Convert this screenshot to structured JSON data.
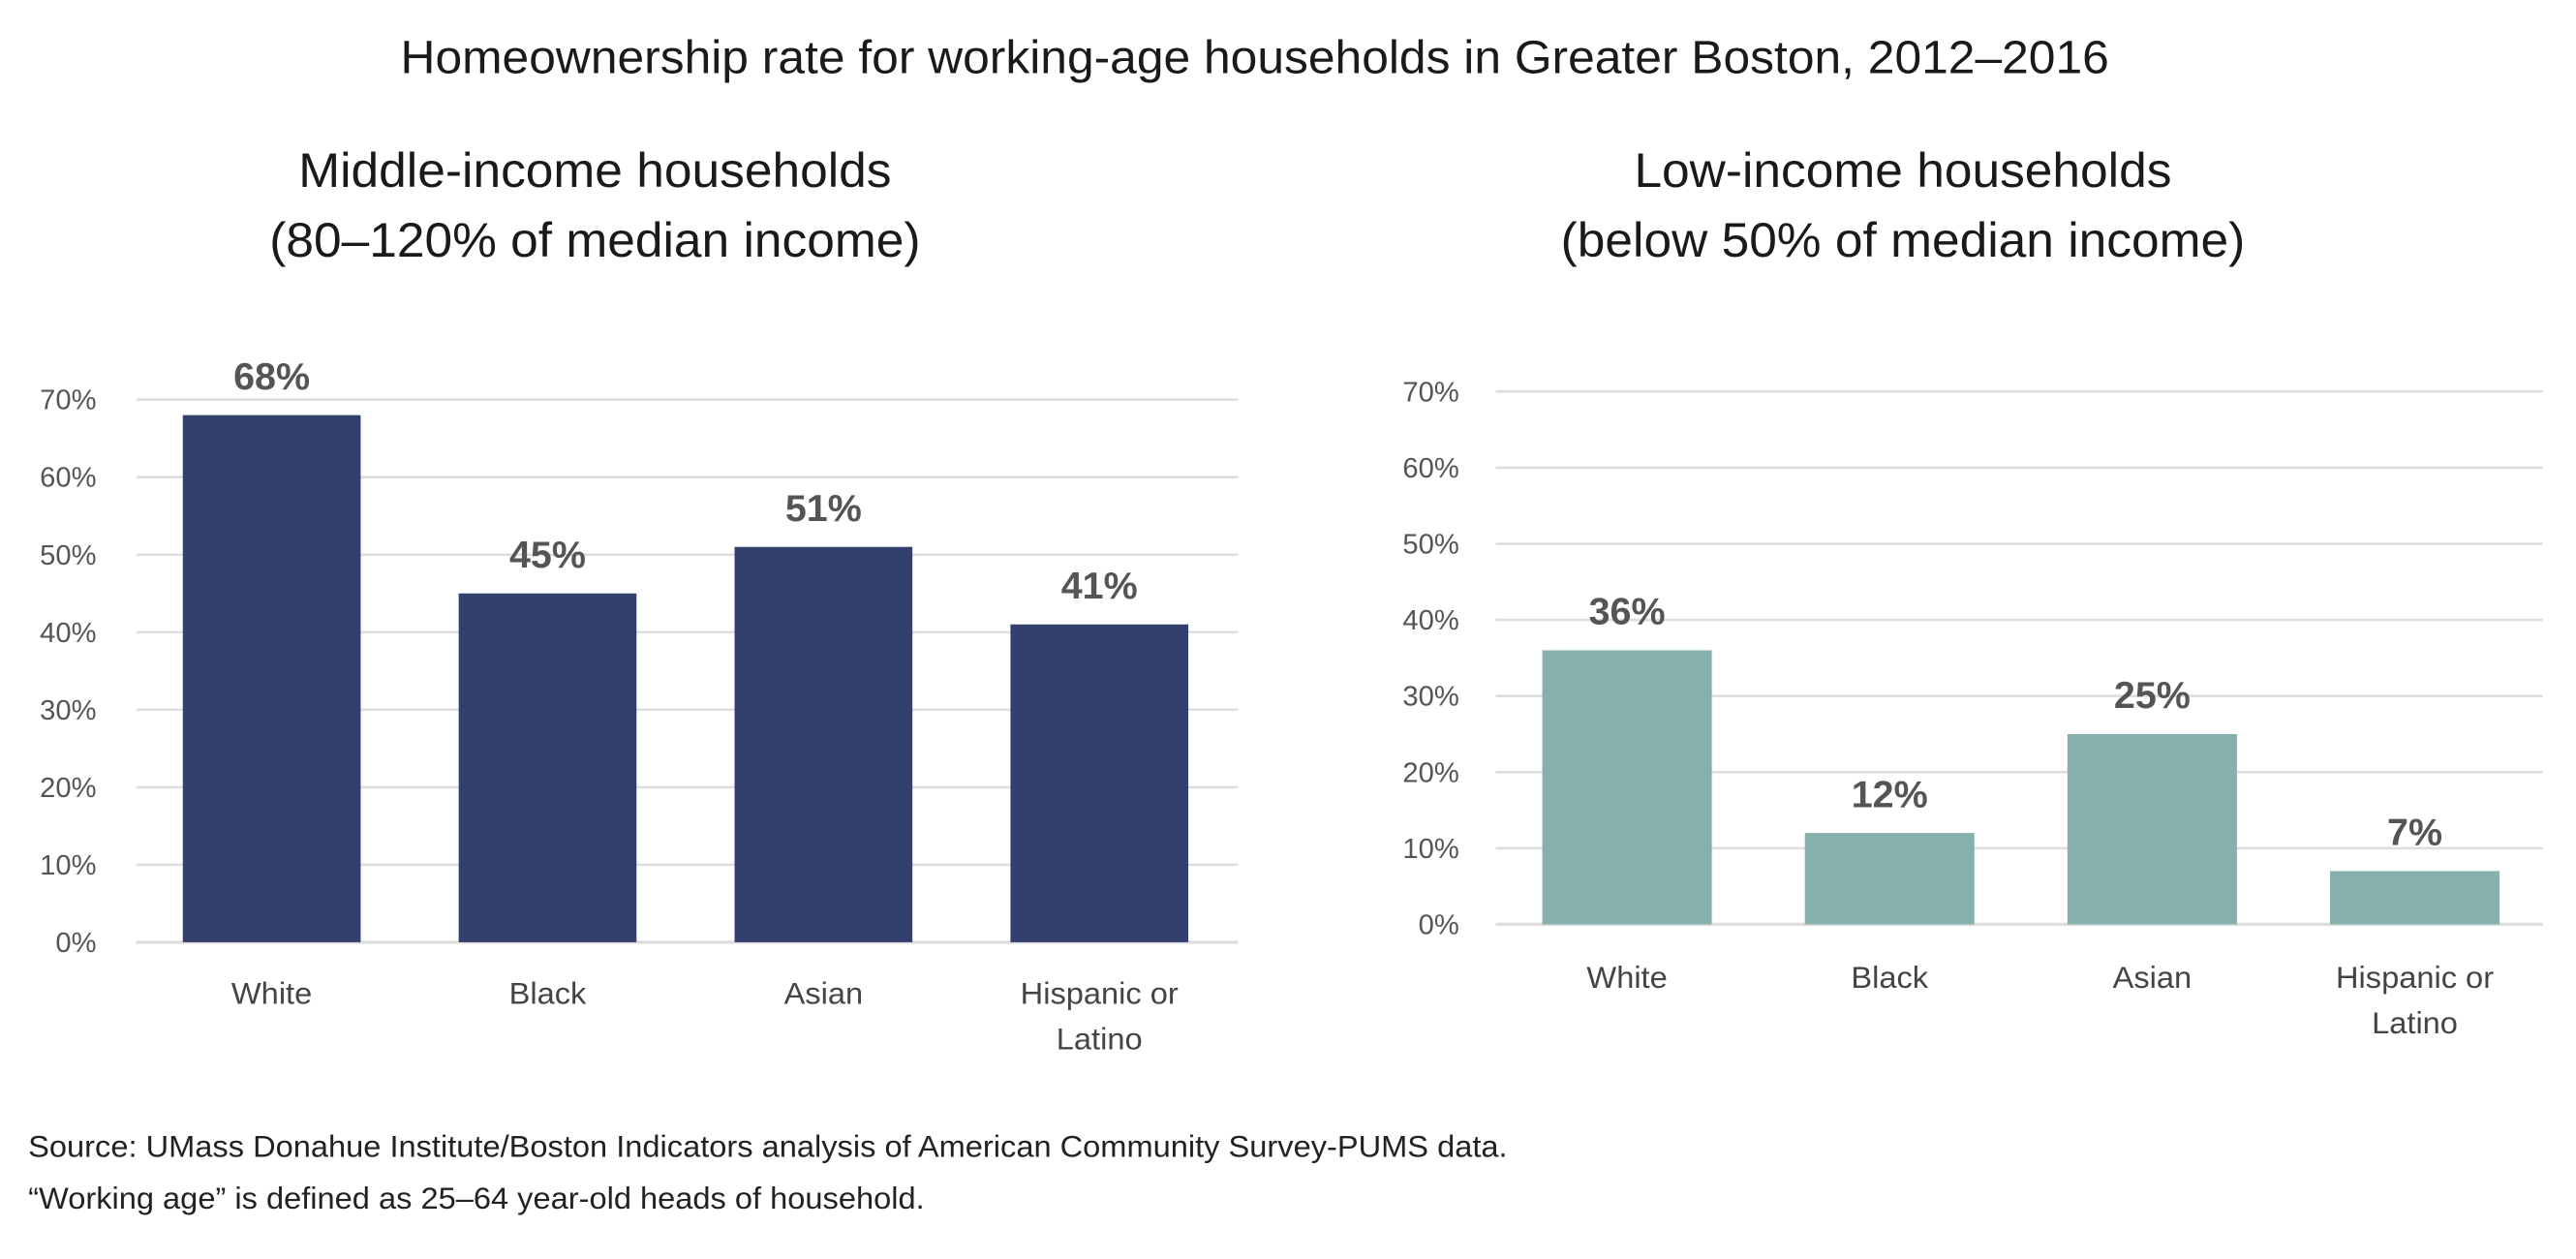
{
  "title": "Homeownership rate for working-age households in Greater Boston, 2012–2016",
  "colors": {
    "middle": "#333f6e",
    "low": "#86b0ac",
    "grid": "#dddddd"
  },
  "chart_data": [
    {
      "type": "bar",
      "title_lines": [
        "Middle-income households",
        "(80–120% of median income)"
      ],
      "categories": [
        [
          "White"
        ],
        [
          "Black"
        ],
        [
          "Asian"
        ],
        [
          "Hispanic or",
          "Latino"
        ]
      ],
      "values": [
        68,
        45,
        51,
        41
      ],
      "data_labels": [
        "68%",
        "45%",
        "51%",
        "41%"
      ],
      "yticks": [
        "0%",
        "10%",
        "20%",
        "30%",
        "40%",
        "50%",
        "60%",
        "70%"
      ],
      "ylim": [
        0,
        70
      ],
      "grid": true,
      "xlabel": "",
      "ylabel": ""
    },
    {
      "type": "bar",
      "title_lines": [
        "Low-income households",
        "(below 50% of median income)"
      ],
      "categories": [
        [
          "White"
        ],
        [
          "Black"
        ],
        [
          "Asian"
        ],
        [
          "Hispanic or",
          "Latino"
        ]
      ],
      "values": [
        36,
        12,
        25,
        7
      ],
      "data_labels": [
        "36%",
        "12%",
        "25%",
        "7%"
      ],
      "yticks": [
        "0%",
        "10%",
        "20%",
        "30%",
        "40%",
        "50%",
        "60%",
        "70%"
      ],
      "ylim": [
        0,
        70
      ],
      "grid": true,
      "xlabel": "",
      "ylabel": ""
    }
  ],
  "notes": [
    "Source: UMass Donahue Institute/Boston Indicators analysis of American Community Survey-PUMS data.",
    "“Working age” is defined as 25–64 year-old heads of household."
  ]
}
